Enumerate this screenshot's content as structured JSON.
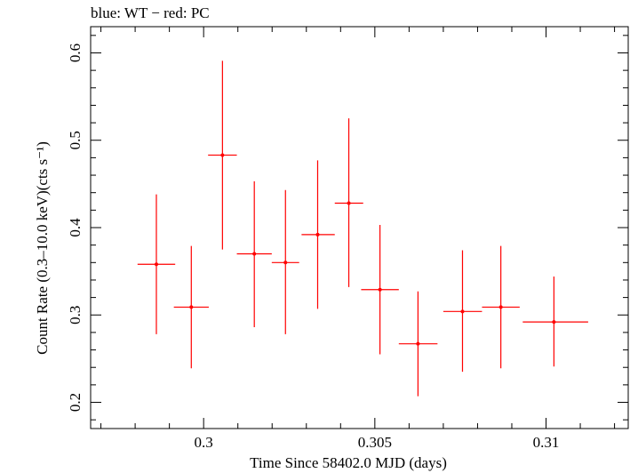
{
  "chart_data": {
    "type": "scatter",
    "title": "blue: WT − red: PC",
    "xlabel": "Time Since 58402.0 MJD (days)",
    "ylabel": "Count Rate (0.3–10.0 keV)(cts s⁻¹)",
    "xlim": [
      0.2967,
      0.3124
    ],
    "ylim": [
      0.17,
      0.63
    ],
    "xticks": [
      0.3,
      0.305,
      0.31
    ],
    "xtick_labels": [
      "0.3",
      "0.305",
      "0.31"
    ],
    "yticks": [
      0.2,
      0.3,
      0.4,
      0.5,
      0.6
    ],
    "ytick_labels": [
      "0.2",
      "0.3",
      "0.4",
      "0.5",
      "0.6"
    ],
    "grid": false,
    "series": [
      {
        "color": "#ff0000",
        "points": [
          {
            "x": 0.29862,
            "y": 0.358,
            "xerr": [
              0.29807,
              0.29917
            ],
            "yerr": [
              0.278,
              0.438
            ]
          },
          {
            "x": 0.29964,
            "y": 0.309,
            "xerr": [
              0.29913,
              0.30015
            ],
            "yerr": [
              0.239,
              0.379
            ]
          },
          {
            "x": 0.30055,
            "y": 0.483,
            "xerr": [
              0.30013,
              0.30097
            ],
            "yerr": [
              0.375,
              0.591
            ]
          },
          {
            "x": 0.30148,
            "y": 0.37,
            "xerr": [
              0.30097,
              0.30199
            ],
            "yerr": [
              0.286,
              0.453
            ]
          },
          {
            "x": 0.30239,
            "y": 0.36,
            "xerr": [
              0.30199,
              0.30279
            ],
            "yerr": [
              0.278,
              0.443
            ]
          },
          {
            "x": 0.30333,
            "y": 0.392,
            "xerr": [
              0.30286,
              0.30383
            ],
            "yerr": [
              0.307,
              0.477
            ]
          },
          {
            "x": 0.30424,
            "y": 0.428,
            "xerr": [
              0.30383,
              0.30466
            ],
            "yerr": [
              0.332,
              0.525
            ]
          },
          {
            "x": 0.30515,
            "y": 0.329,
            "xerr": [
              0.3046,
              0.3057
            ],
            "yerr": [
              0.255,
              0.403
            ]
          },
          {
            "x": 0.30626,
            "y": 0.267,
            "xerr": [
              0.3057,
              0.30683
            ],
            "yerr": [
              0.207,
              0.327
            ]
          },
          {
            "x": 0.30756,
            "y": 0.304,
            "xerr": [
              0.307,
              0.30813
            ],
            "yerr": [
              0.235,
              0.374
            ]
          },
          {
            "x": 0.30868,
            "y": 0.309,
            "xerr": [
              0.30813,
              0.30923
            ],
            "yerr": [
              0.239,
              0.379
            ]
          },
          {
            "x": 0.31023,
            "y": 0.292,
            "xerr": [
              0.30932,
              0.31123
            ],
            "yerr": [
              0.241,
              0.344
            ]
          }
        ]
      }
    ]
  }
}
